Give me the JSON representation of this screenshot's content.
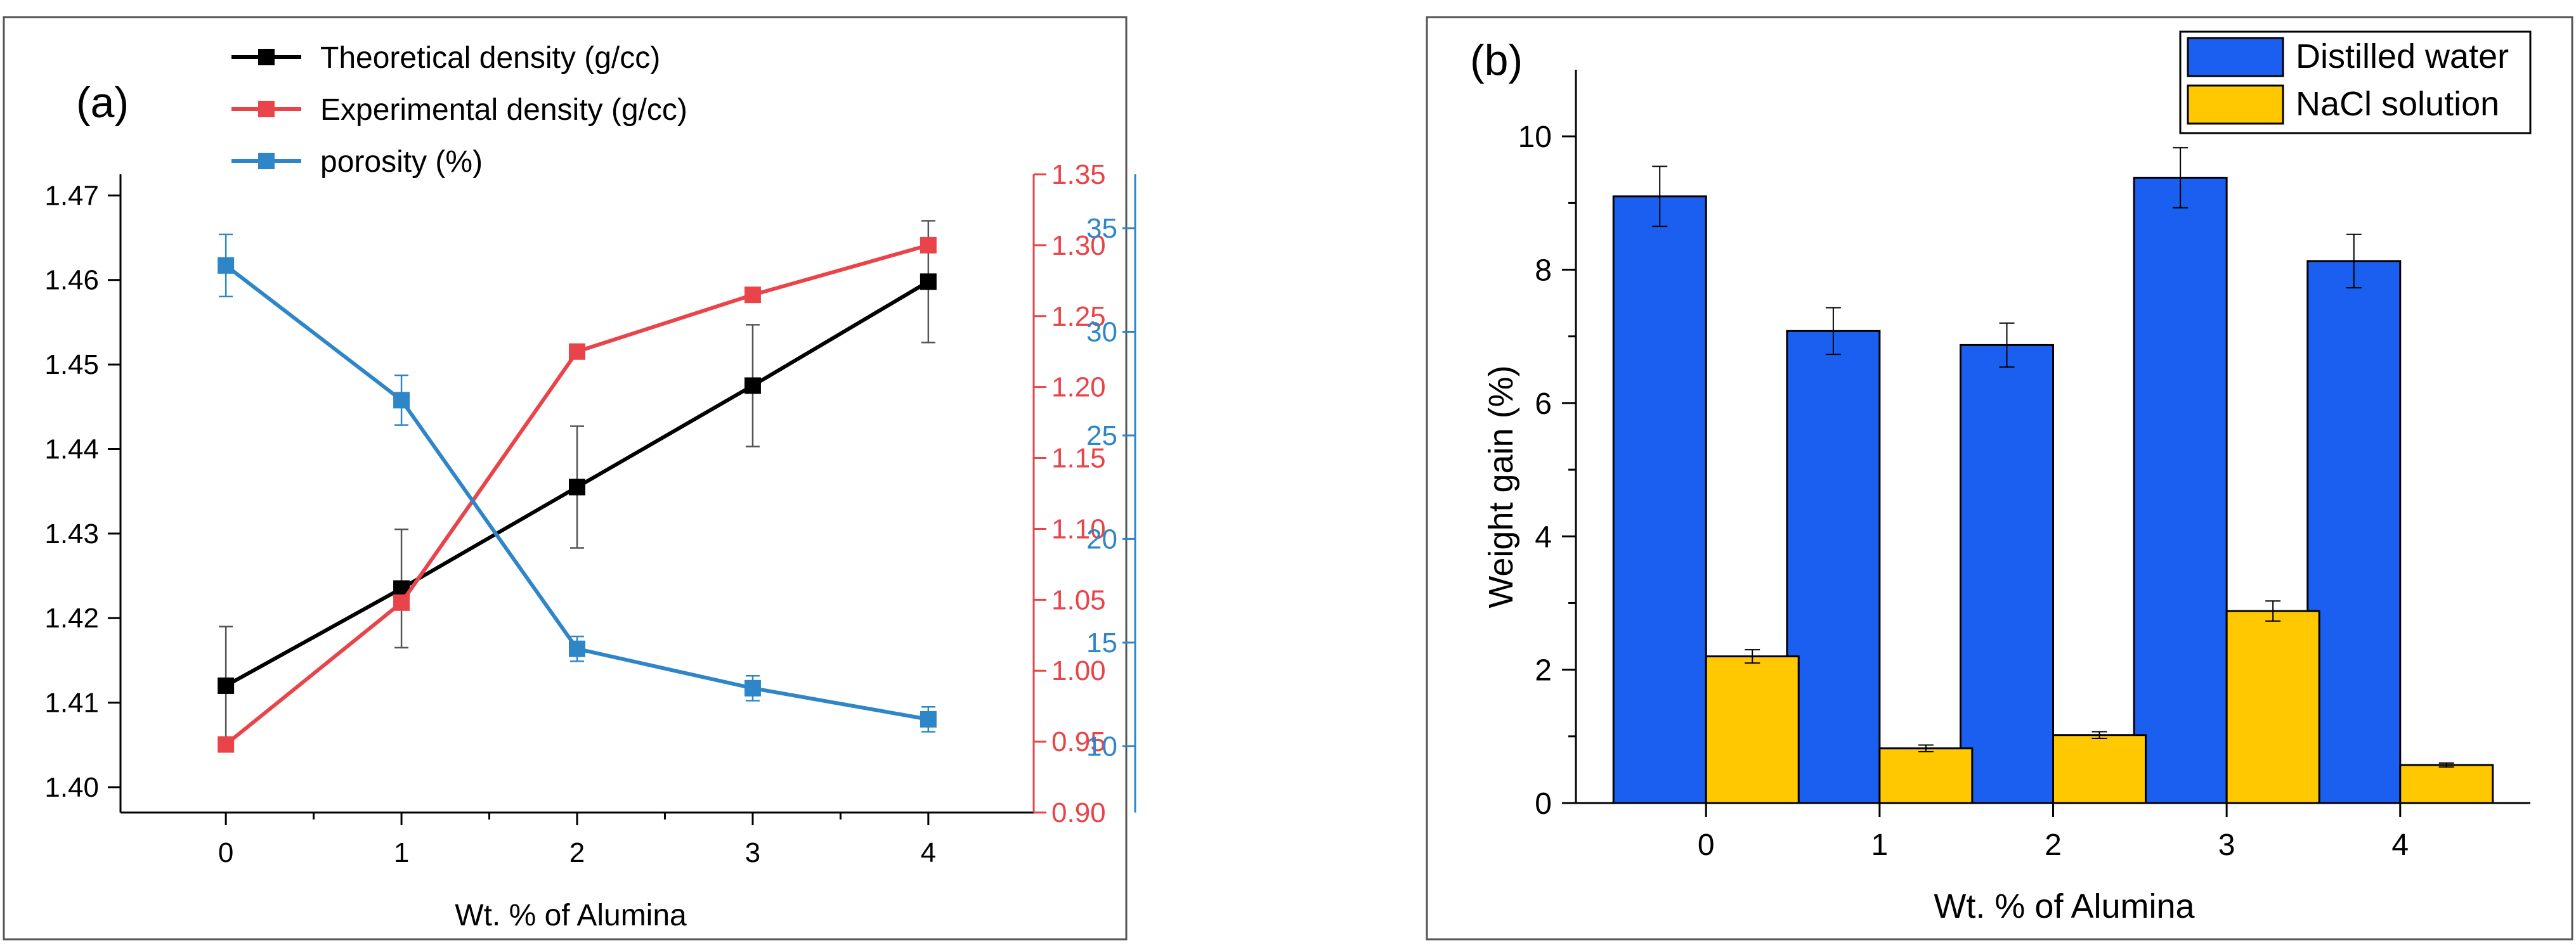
{
  "chart_data": [
    {
      "panel_label": "(a)",
      "type": "line",
      "xlabel": "Wt. % of Alumina",
      "x": [
        0,
        1,
        2,
        3,
        4
      ],
      "xticks": [
        "0",
        "1",
        "2",
        "3",
        "4"
      ],
      "xlim": [
        -0.6,
        4.6
      ],
      "legend_position": "top-center",
      "axes": {
        "left": {
          "ylim": [
            1.397,
            1.4725
          ],
          "ticks": [
            "1.40",
            "1.41",
            "1.42",
            "1.43",
            "1.44",
            "1.45",
            "1.46",
            "1.47"
          ],
          "color": "#000000"
        },
        "right1": {
          "ylim": [
            0.9,
            1.35
          ],
          "ticks": [
            "0.90",
            "0.95",
            "1.00",
            "1.05",
            "1.10",
            "1.15",
            "1.20",
            "1.25",
            "1.30",
            "1.35"
          ],
          "color": "#e8444a"
        },
        "right2": {
          "ylim": [
            6.8,
            37.6
          ],
          "ticks": [
            "10",
            "15",
            "20",
            "25",
            "30",
            "35"
          ],
          "color": "#2e86c8"
        }
      },
      "series": [
        {
          "name": "Theoretical density (g/cc)",
          "axis": "left",
          "color": "#000000",
          "values": [
            1.412,
            1.4235,
            1.4355,
            1.4475,
            1.4598
          ],
          "errors": [
            0.007,
            0.007,
            0.0072,
            0.0072,
            0.0072
          ]
        },
        {
          "name": "Experimental density (g/cc)",
          "axis": "right1",
          "color": "#e8444a",
          "values": [
            0.948,
            1.048,
            1.225,
            1.265,
            1.3
          ],
          "errors": [
            0.004,
            0.005,
            0.005,
            0.004,
            0.005
          ]
        },
        {
          "name": "porosity (%)",
          "axis": "right2",
          "color": "#2e86c8",
          "values": [
            33.2,
            26.7,
            14.7,
            12.8,
            11.3
          ],
          "errors": [
            1.5,
            1.2,
            0.6,
            0.6,
            0.6
          ]
        }
      ]
    },
    {
      "panel_label": "(b)",
      "type": "bar",
      "xlabel": "Wt. % of Alumina",
      "ylabel": "Weight gain (%)",
      "categories": [
        "0",
        "1",
        "2",
        "3",
        "4"
      ],
      "ylim": [
        0,
        11
      ],
      "yticks": [
        "0",
        "2",
        "4",
        "6",
        "8",
        "10"
      ],
      "legend_position": "top-right",
      "series": [
        {
          "name": "Distilled water",
          "color": "#1a5ff0",
          "values": [
            9.1,
            7.08,
            6.87,
            9.38,
            8.13
          ],
          "errors": [
            0.45,
            0.35,
            0.33,
            0.45,
            0.4
          ]
        },
        {
          "name": "NaCl solution",
          "color": "#ffc800",
          "values": [
            2.2,
            0.82,
            1.02,
            2.88,
            0.57
          ],
          "errors": [
            0.1,
            0.05,
            0.05,
            0.15,
            0.03
          ]
        }
      ]
    }
  ]
}
